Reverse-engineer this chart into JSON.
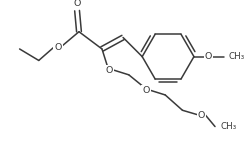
{
  "background_color": "#ffffff",
  "line_color": "#3a3a3a",
  "line_width": 1.1,
  "font_size": 6.8,
  "figsize": [
    2.46,
    1.62
  ],
  "dpi": 100,
  "xlim": [
    0,
    246
  ],
  "ylim": [
    0,
    162
  ]
}
